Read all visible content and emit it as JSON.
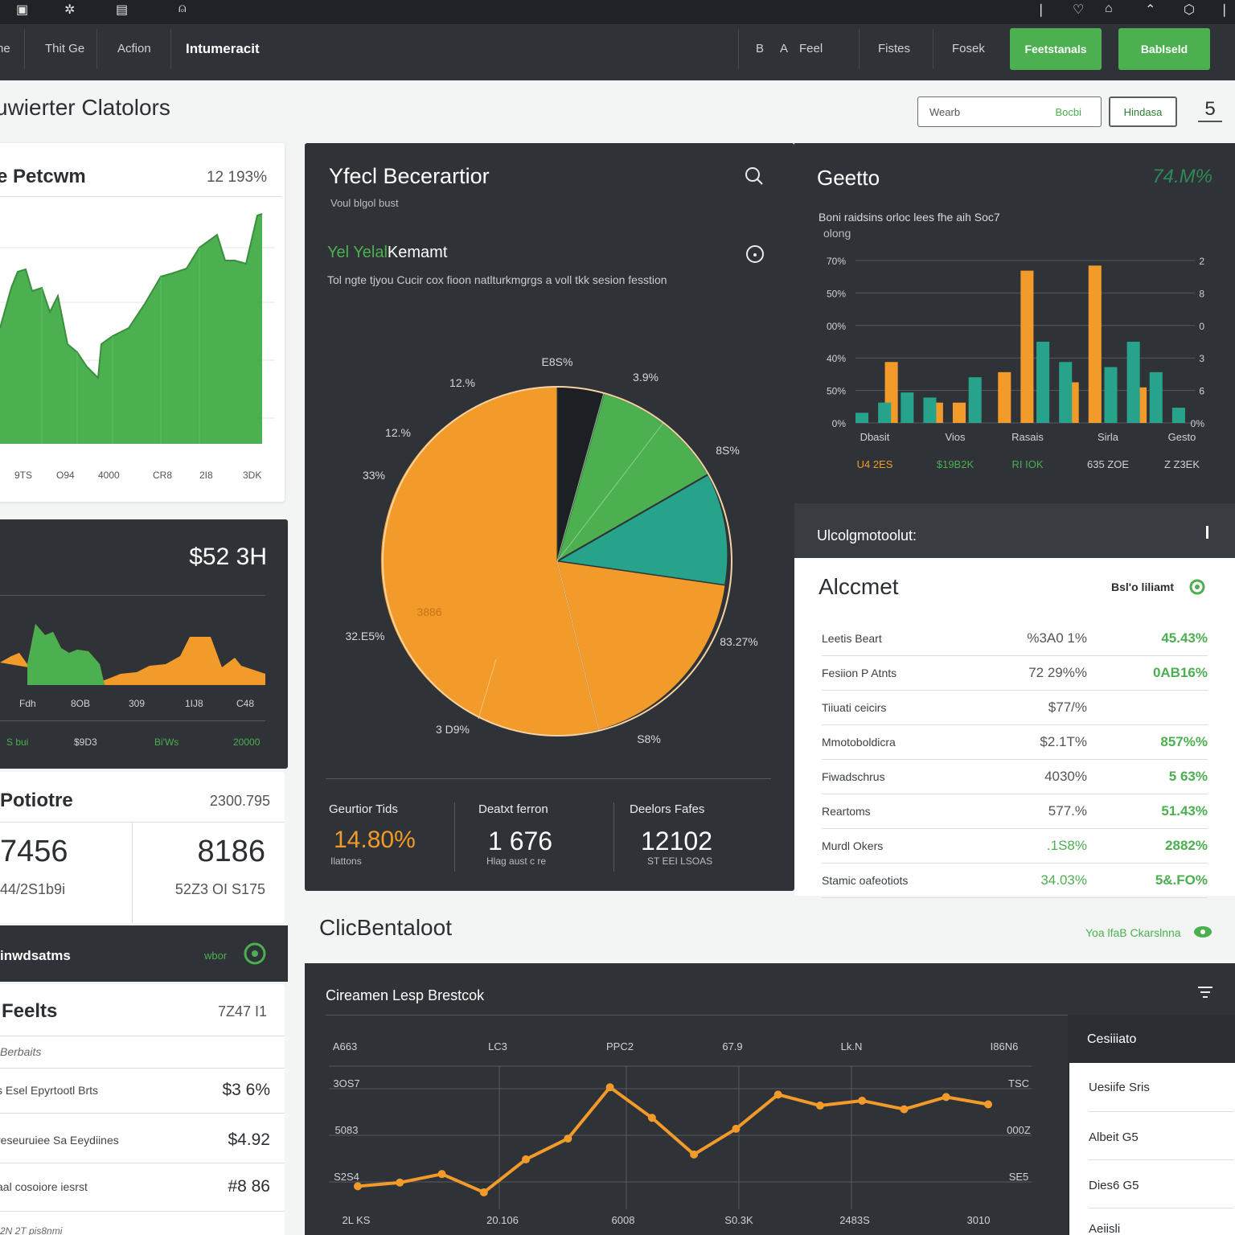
{
  "topbar": {
    "icons": [
      "chart-icon",
      "sparkle-icon",
      "grid-icon",
      "user-icon",
      "info-icon",
      "heart-icon",
      "lock-icon",
      "home-icon",
      "shield-icon",
      "menu-icon"
    ],
    "glyphs": [
      "▣",
      "✲",
      "▤",
      "⍝",
      "❘",
      "♡",
      "⌂",
      "⌃",
      "⬡",
      "❘"
    ]
  },
  "nav": {
    "items": [
      "he",
      "Thit Ge",
      "Acfion",
      "Intumeracit"
    ],
    "right_items": [
      "B",
      "A",
      "Feel",
      "Fistes",
      "Fosek"
    ],
    "button1": "Feetstanals",
    "button2": "Bablseld"
  },
  "header": {
    "title": "uwierter Clatolors",
    "search_placeholder": "Wearb",
    "search_label": "Bocbi",
    "filter_label": "Hindasa",
    "page_number": "5"
  },
  "perf_card": {
    "title": "e Petcwm",
    "value": "12 193%",
    "x_labels": [
      "9TS",
      "O94",
      "4000",
      "CR8",
      "2I8",
      "3DK"
    ]
  },
  "balance_card": {
    "value": "$52 3H",
    "x_labels": [
      "Fdh",
      "8OB",
      "309",
      "1IJ8",
      "C48"
    ],
    "bottom_labels": [
      "S bui",
      "$9D3",
      "Bi'Ws",
      "20000"
    ]
  },
  "portfolio_card": {
    "title": "Potiotre",
    "value": "2300.795",
    "left_big": "7456",
    "left_small": "44/2S1b9i",
    "right_big": "8186",
    "right_small": "52Z3 OI S175"
  },
  "instruments_bar": {
    "label": "inwdsatms",
    "link": "wbor"
  },
  "feels_card": {
    "title": "Feelts",
    "value": "7Z47 I1",
    "subtitle": "Berbaits",
    "rows": [
      {
        "label": "s Esel Epyrtootl Brts",
        "value": "$3 6%"
      },
      {
        "label": "reseuruiee Sa Eeydiines",
        "value": "$4.92"
      },
      {
        "label": "aal cosoiore iesrst",
        "value": "#8 86"
      }
    ],
    "footer": "2N 2T  pis8nmi"
  },
  "yield_panel": {
    "title": "Yfecl Becerartior",
    "subtitle": "Voul blgol bust",
    "section_title_green": "Yel Yelal",
    "section_title_white": "Kemamt",
    "description": "Tol ngte tjyou Cucir cox fioon natlturkmgrgs a voll tkk sesion fesstion",
    "pie_labels": [
      "E8S%",
      "3.9%",
      "8S%",
      "12.%",
      "33%",
      "3886",
      "32.E5%",
      "3 D9%",
      "S8%",
      "83.27%"
    ],
    "stats": [
      {
        "label": "Geurtior Tids",
        "value": "14.80%",
        "sub": "Ilattons"
      },
      {
        "label": "Deatxt ferron",
        "value": "1 676",
        "sub": "Hlag aust c re"
      },
      {
        "label": "Deelors Fafes",
        "value": "12102",
        "sub": "ST EEI LSOAS"
      }
    ]
  },
  "geetto_panel": {
    "title": "Geetto",
    "value": "74.M%",
    "description": "Boni raidsins orloc lees fhe aih Soc7",
    "description2": "olong",
    "y_left": [
      "70%",
      "50%",
      "00%",
      "40%",
      "50%",
      "0%"
    ],
    "y_right": [
      "2",
      "8",
      "0",
      "3",
      "6",
      "0%"
    ],
    "x_labels": [
      "Dbasit",
      "Vios",
      "Rasais",
      "Sirla",
      "Gesto"
    ],
    "bottom_values": [
      "U4 2ES",
      "$19B2K",
      "RI IOK",
      "635 ZOE",
      "Z Z3EK"
    ]
  },
  "chart_data": [
    {
      "type": "bar",
      "title": "Geetto",
      "categories": [
        "Dbasit",
        "",
        "",
        "",
        "Vios",
        "",
        "",
        "Rasais",
        "",
        "",
        "",
        "Sirla",
        "",
        "",
        "Gesto"
      ],
      "series": [
        {
          "color": "#f29a2a",
          "values": [
            0,
            12,
            0,
            4,
            4,
            0,
            10,
            30,
            0,
            8,
            31,
            0,
            7,
            0,
            0
          ]
        },
        {
          "color": "#26a38a",
          "values": [
            2,
            4,
            6,
            5,
            0,
            9,
            0,
            0,
            16,
            12,
            0,
            11,
            16,
            10,
            3
          ]
        }
      ]
    },
    {
      "type": "line",
      "title": "Cireamen Lesp Brestcok",
      "x": [
        "2L KS",
        "",
        "",
        "20.106",
        "",
        "",
        "6008",
        "",
        "",
        "S0.3K",
        "",
        "",
        "2483S",
        "",
        "",
        "3010"
      ],
      "series": [
        {
          "color": "#f29a2a",
          "values": [
            7,
            10,
            17,
            2,
            29,
            46,
            88,
            63,
            33,
            54,
            82,
            73,
            77,
            70,
            80,
            74
          ]
        }
      ]
    }
  ],
  "allocation_panel": {
    "header": "Ulcolgmotoolut:",
    "title": "Alccmet",
    "link": "Bsl'o liliamt",
    "rows": [
      {
        "label": "Leetis Beart",
        "v1": "%3A0 1%",
        "v2": "45.43%",
        "v1_color": "#555",
        "v2_color": "#4caf50"
      },
      {
        "label": "Fesiion P Atnts",
        "v1": "72 29%%",
        "v2": "0AB16%",
        "v1_color": "#555",
        "v2_color": "#4caf50"
      },
      {
        "label": "Tiiuati ceicirs",
        "v1": "$77/%",
        "v2": "",
        "v1_color": "#555",
        "v2_color": "#4caf50"
      },
      {
        "label": "Mmotoboldicra",
        "v1": "$2.1T%",
        "v2": "857%%",
        "v1_color": "#555",
        "v2_color": "#4caf50"
      },
      {
        "label": "Fiwadschrus",
        "v1": "4030%",
        "v2": "5 63%",
        "v1_color": "#555",
        "v2_color": "#4caf50"
      },
      {
        "label": "Reartoms",
        "v1": "577.%",
        "v2": "51.43%",
        "v1_color": "#555",
        "v2_color": "#4caf50"
      },
      {
        "label": "Murdl Okers",
        "v1": ".1S8%",
        "v2": "2882%",
        "v1_color": "#4caf50",
        "v2_color": "#4caf50"
      },
      {
        "label": "Stamic oafeotiots",
        "v1": "34.03%",
        "v2": "5&.FO%",
        "v1_color": "#4caf50",
        "v2_color": "#4caf50"
      }
    ]
  },
  "bottom_section": {
    "title": "ClicBentaloot",
    "link": "Yoa lfaB Ckarslnna"
  },
  "line_panel": {
    "title": "Cireamen Lesp Brestcok",
    "top_labels": [
      "A663",
      "LC3",
      "PPC2",
      "67.9",
      "Lk.N",
      "I86N6"
    ],
    "y_left": [
      "3OS7",
      "5083",
      "S2S4"
    ],
    "y_right": [
      "TSC",
      "000Z",
      "SE5"
    ],
    "x_labels": [
      "2L KS",
      "20.106",
      "6008",
      "S0.3K",
      "2483S",
      "3010"
    ]
  },
  "side_list": {
    "title": "Cesiiiato",
    "items": [
      "Uesiife Sris",
      "Albeit G5",
      "Dies6 G5",
      "Aeiisli"
    ]
  }
}
